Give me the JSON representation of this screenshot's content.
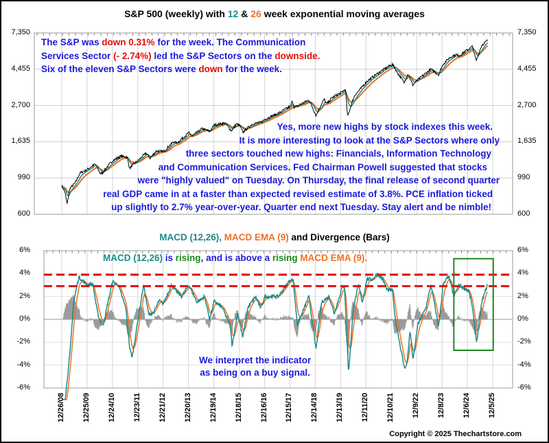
{
  "colors": {
    "price": "#000000",
    "ema12": "#1a8a8a",
    "ema26": "#f07020",
    "macd": "#1a8a8a",
    "signal": "#f07020",
    "hist": "#999999",
    "note_blue": "#1a1adc",
    "red": "#e01010",
    "green": "#1a8a1a",
    "box": "#1a8a1a",
    "dash": "#e01010"
  },
  "chart_data": [
    {
      "type": "line",
      "title_segments": [
        {
          "text": "S&P 500 (weekly) with ",
          "color": "#000000"
        },
        {
          "text": "12",
          "color": "#1a8a8a"
        },
        {
          "text": " & ",
          "color": "#000000"
        },
        {
          "text": "26",
          "color": "#f07020"
        },
        {
          "text": " week exponential moving averages",
          "color": "#000000"
        }
      ],
      "yscale": "log",
      "ylim": [
        600,
        7350
      ],
      "yticks": [
        "7,350",
        "4,455",
        "2,700",
        "1,635",
        "990",
        "600"
      ],
      "ytick_values": [
        7350,
        4455,
        2700,
        1635,
        990,
        600
      ],
      "xlim": [
        2008.98,
        2025.93
      ],
      "series": [
        {
          "name": "S&P 500 weekly close",
          "points": [
            [
              2008.98,
              890
            ],
            [
              2009.1,
              820
            ],
            [
              2009.19,
              690
            ],
            [
              2009.3,
              860
            ],
            [
              2009.5,
              920
            ],
            [
              2009.7,
              1060
            ],
            [
              2009.98,
              1115
            ],
            [
              2010.3,
              1200
            ],
            [
              2010.5,
              1050
            ],
            [
              2010.6,
              1070
            ],
            [
              2010.98,
              1258
            ],
            [
              2011.3,
              1340
            ],
            [
              2011.55,
              1320
            ],
            [
              2011.65,
              1130
            ],
            [
              2011.8,
              1200
            ],
            [
              2011.98,
              1258
            ],
            [
              2012.3,
              1400
            ],
            [
              2012.45,
              1300
            ],
            [
              2012.7,
              1440
            ],
            [
              2012.98,
              1426
            ],
            [
              2013.4,
              1640
            ],
            [
              2013.5,
              1600
            ],
            [
              2013.98,
              1848
            ],
            [
              2014.1,
              1760
            ],
            [
              2014.5,
              1960
            ],
            [
              2014.8,
              1880
            ],
            [
              2014.98,
              2059
            ],
            [
              2015.4,
              2120
            ],
            [
              2015.65,
              1900
            ],
            [
              2015.85,
              2090
            ],
            [
              2015.98,
              2044
            ],
            [
              2016.1,
              1860
            ],
            [
              2016.5,
              2100
            ],
            [
              2016.8,
              2130
            ],
            [
              2016.98,
              2239
            ],
            [
              2017.5,
              2420
            ],
            [
              2017.98,
              2674
            ],
            [
              2018.05,
              2870
            ],
            [
              2018.12,
              2620
            ],
            [
              2018.7,
              2910
            ],
            [
              2018.98,
              2350
            ],
            [
              2019.3,
              2940
            ],
            [
              2019.4,
              2750
            ],
            [
              2019.6,
              3000
            ],
            [
              2019.98,
              3231
            ],
            [
              2020.13,
              3380
            ],
            [
              2020.22,
              2300
            ],
            [
              2020.5,
              3100
            ],
            [
              2020.7,
              3350
            ],
            [
              2020.98,
              3756
            ],
            [
              2021.5,
              4300
            ],
            [
              2021.98,
              4766
            ],
            [
              2022.2,
              4200
            ],
            [
              2022.45,
              3700
            ],
            [
              2022.6,
              4200
            ],
            [
              2022.78,
              3580
            ],
            [
              2022.98,
              3840
            ],
            [
              2023.5,
              4450
            ],
            [
              2023.8,
              4120
            ],
            [
              2023.98,
              4770
            ],
            [
              2024.25,
              5250
            ],
            [
              2024.5,
              5460
            ],
            [
              2024.6,
              5350
            ],
            [
              2024.98,
              5880
            ],
            [
              2025.13,
              6100
            ],
            [
              2025.28,
              4980
            ],
            [
              2025.5,
              6200
            ],
            [
              2025.73,
              6640
            ]
          ]
        }
      ],
      "ema_periods": [
        12,
        26
      ]
    },
    {
      "type": "line",
      "title_segments": [
        {
          "text": "MACD (12,26), ",
          "color": "#1a8a8a"
        },
        {
          "text": "MACD EMA (9)",
          "color": "#f07020"
        },
        {
          "text": " and Divergence (Bars)",
          "color": "#000000"
        }
      ],
      "ylim": [
        -6,
        6
      ],
      "yticks": [
        "6%",
        "4%",
        "2%",
        "0%",
        "-2%",
        "-4%",
        "-6%"
      ],
      "ytick_values": [
        6,
        4,
        2,
        0,
        -2,
        -4,
        -6
      ],
      "xticks": [
        "12/26/08",
        "12/25/09",
        "12/24/10",
        "12/23/11",
        "12/21/12",
        "12/20/13",
        "12/19/14",
        "12/18/15",
        "12/16/16",
        "12/15/17",
        "12/14/18",
        "12/13/19",
        "12/11/20",
        "12/10/21",
        "12/9/22",
        "12/8/23",
        "12/6/24",
        "12/5/25"
      ],
      "reference_lines": [
        3.9,
        2.9
      ],
      "highlight_box": {
        "x": [
          2024.4,
          2025.95
        ],
        "y": [
          -2.7,
          5.3
        ]
      },
      "series": [
        {
          "name": "MACD (12,26)",
          "points": [
            [
              2009.02,
              -9
            ],
            [
              2009.3,
              -3
            ],
            [
              2009.45,
              1.5
            ],
            [
              2009.65,
              3.7
            ],
            [
              2009.98,
              3
            ],
            [
              2010.2,
              3.1
            ],
            [
              2010.4,
              0.4
            ],
            [
              2010.6,
              -0.6
            ],
            [
              2010.8,
              1.5
            ],
            [
              2010.98,
              3.3
            ],
            [
              2011.2,
              3
            ],
            [
              2011.5,
              1
            ],
            [
              2011.65,
              -2.5
            ],
            [
              2011.75,
              -3.3
            ],
            [
              2011.98,
              0
            ],
            [
              2012.2,
              3
            ],
            [
              2012.4,
              0.4
            ],
            [
              2012.6,
              0.6
            ],
            [
              2012.8,
              1.6
            ],
            [
              2012.98,
              1.4
            ],
            [
              2013.3,
              3
            ],
            [
              2013.5,
              2.4
            ],
            [
              2013.7,
              2
            ],
            [
              2013.98,
              3
            ],
            [
              2014.3,
              1.5
            ],
            [
              2014.6,
              2
            ],
            [
              2014.8,
              0
            ],
            [
              2014.98,
              1.6
            ],
            [
              2015.3,
              1
            ],
            [
              2015.6,
              -0.5
            ],
            [
              2015.68,
              -2.3
            ],
            [
              2015.9,
              0.6
            ],
            [
              2016.1,
              -1.6
            ],
            [
              2016.3,
              1
            ],
            [
              2016.6,
              2
            ],
            [
              2016.8,
              1
            ],
            [
              2016.98,
              2
            ],
            [
              2017.5,
              2
            ],
            [
              2017.98,
              3.5
            ],
            [
              2018.08,
              3.4
            ],
            [
              2018.25,
              -0.5
            ],
            [
              2018.7,
              2
            ],
            [
              2018.98,
              -2.6
            ],
            [
              2019.2,
              1.5
            ],
            [
              2019.5,
              2
            ],
            [
              2019.7,
              0.5
            ],
            [
              2019.98,
              2.6
            ],
            [
              2020.1,
              3
            ],
            [
              2020.26,
              -4.7
            ],
            [
              2020.45,
              1
            ],
            [
              2020.65,
              3
            ],
            [
              2020.8,
              1.5
            ],
            [
              2020.98,
              3.5
            ],
            [
              2021.2,
              3.5
            ],
            [
              2021.4,
              4
            ],
            [
              2021.6,
              3.5
            ],
            [
              2021.8,
              2.5
            ],
            [
              2021.98,
              2.6
            ],
            [
              2022.1,
              0
            ],
            [
              2022.45,
              -4.2
            ],
            [
              2022.55,
              -4
            ],
            [
              2022.68,
              -1
            ],
            [
              2022.8,
              -3.6
            ],
            [
              2022.98,
              -0.5
            ],
            [
              2023.3,
              1
            ],
            [
              2023.5,
              3
            ],
            [
              2023.8,
              -0.6
            ],
            [
              2023.98,
              3
            ],
            [
              2024.2,
              3.8
            ],
            [
              2024.4,
              2
            ],
            [
              2024.6,
              3
            ],
            [
              2024.98,
              2.5
            ],
            [
              2025.1,
              1.5
            ],
            [
              2025.3,
              -2
            ],
            [
              2025.5,
              1.5
            ],
            [
              2025.73,
              3.1
            ]
          ]
        }
      ],
      "signal_period": 9
    }
  ],
  "notes": {
    "top_left": [
      [
        {
          "text": "The S&P was ",
          "color": "#1a1adc"
        },
        {
          "text": "down 0.31%",
          "color": "#e01010"
        },
        {
          "text": " for the week. The Communication",
          "color": "#1a1adc"
        }
      ],
      [
        {
          "text": "Services Sector ",
          "color": "#1a1adc"
        },
        {
          "text": "(- 2.74%)",
          "color": "#e01010"
        },
        {
          "text": " led the S&P Sectors on the ",
          "color": "#1a1adc"
        },
        {
          "text": "downside.",
          "color": "#e01010"
        }
      ],
      [
        {
          "text": "Six of the eleven S&P Sectors were ",
          "color": "#1a1adc"
        },
        {
          "text": "down",
          "color": "#e01010"
        },
        {
          "text": " for the week.",
          "color": "#1a1adc"
        }
      ]
    ],
    "commentary": [
      "Yes, more new highs by stock indexes this week.",
      "It is more interesting to look at the S&P Sectors where only",
      "three sectors touched new highs: Financials, Information Technology",
      "and Communication Services.  Fed Chairman Powell suggested that stocks",
      "were \"highly valued\" on Tuesday. On Thursday, the final release of second quarter",
      "real GDP came in at a faster than expected revised estimate of 3.8%.  PCE inflation ticked",
      "up slightly to 2.7% year-over-year.  Quarter end next Tuesday.  Stay alert and be nimble!"
    ],
    "macd_status": [
      {
        "text": "MACD (12,26) ",
        "color": "#1a8a8a"
      },
      {
        "text": "is ",
        "color": "#1a1adc"
      },
      {
        "text": "rising",
        "color": "#1a8a1a"
      },
      {
        "text": ", and is above a ",
        "color": "#1a1adc"
      },
      {
        "text": "rising ",
        "color": "#1a8a1a"
      },
      {
        "text": "MACD EMA (9).",
        "color": "#f07020"
      }
    ],
    "signal": [
      "We interpret the indicator",
      "as being on a buy signal."
    ]
  },
  "copyright": "Copyright © 2025 Thechartstore.com"
}
